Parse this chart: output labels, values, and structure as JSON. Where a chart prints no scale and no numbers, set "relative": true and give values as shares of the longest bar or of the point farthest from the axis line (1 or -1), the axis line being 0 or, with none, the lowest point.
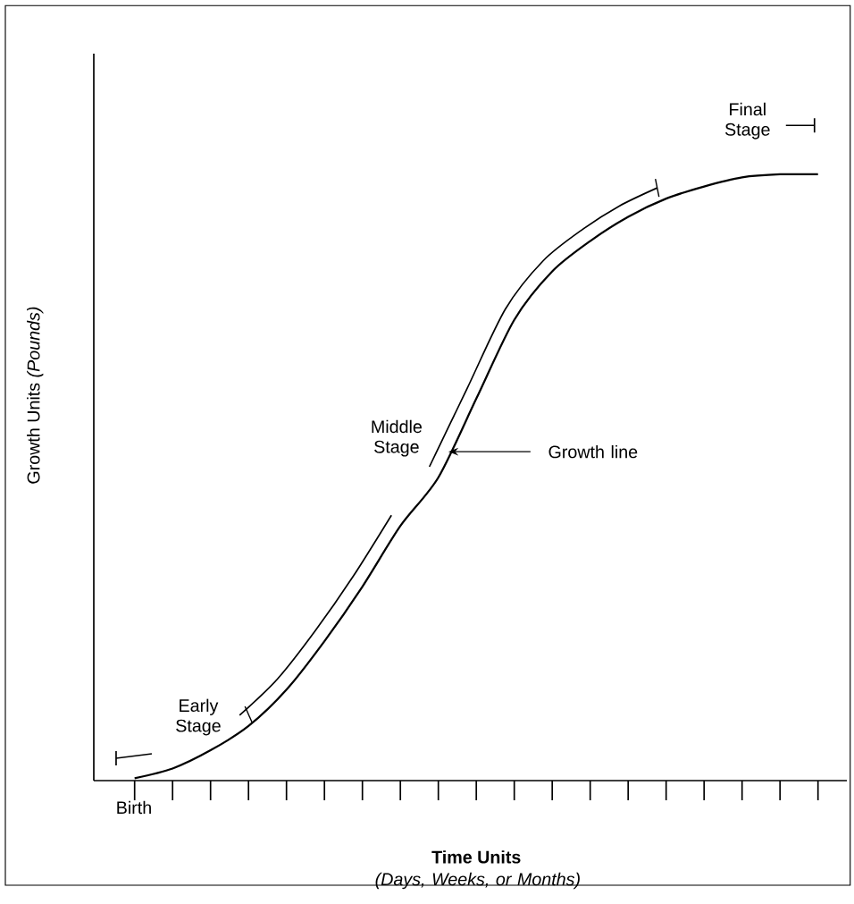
{
  "chart_data": {
    "type": "line",
    "relative": true,
    "xlabel": "Time Units",
    "ylabel": "Growth Units *(Pounds)*",
    "categories": [
      null,
      null,
      null,
      null,
      null,
      null,
      null,
      null,
      null,
      null,
      null,
      null,
      null,
      null,
      null,
      null,
      null,
      null,
      null
    ],
    "series": [
      {
        "color": "#000000",
        "values": [
          0.004,
          0.02,
          0.05,
          0.09,
          0.15,
          0.23,
          0.32,
          0.42,
          0.5,
          0.63,
          0.76,
          0.84,
          0.89,
          0.93,
          0.96,
          0.98,
          0.995,
          1,
          1
        ]
      }
    ],
    "marker": "none",
    "line_style": "solid",
    "grid": false,
    "annotations": [
      "(Days, Weeks, or Months)",
      "Early Stage",
      "Middle Stage",
      "Final Stage",
      "Growth line",
      "Birth"
    ]
  }
}
